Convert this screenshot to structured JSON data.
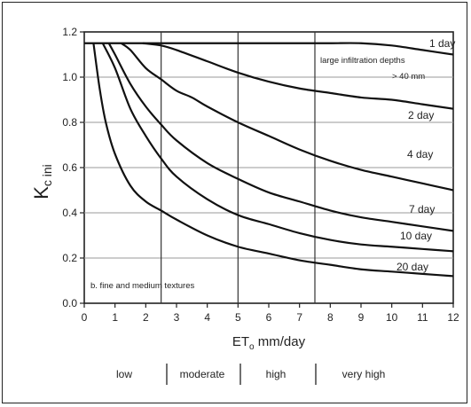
{
  "chart_data": {
    "type": "line",
    "title": "",
    "xlabel_main": "ET",
    "xlabel_sub": "o",
    "xlabel_suffix": " mm/day",
    "ylabel_main": "K",
    "ylabel_sub": "c ini",
    "xlim": [
      0,
      12
    ],
    "ylim": [
      0,
      1.2
    ],
    "x_ticks": [
      0,
      1,
      2,
      3,
      4,
      5,
      6,
      7,
      8,
      9,
      10,
      11,
      12
    ],
    "y_ticks": [
      0.0,
      0.2,
      0.4,
      0.6,
      0.8,
      1.0,
      1.2
    ],
    "y_tick_labels": [
      "0.0",
      "0.2",
      "0.4",
      "0.6",
      "0.8",
      "1.0",
      "1.2"
    ],
    "vertical_lines": [
      2.5,
      5,
      7.5
    ],
    "grid": "horizontal",
    "series": [
      {
        "name": "1 day",
        "x": [
          0,
          1,
          2,
          3,
          4,
          5,
          6,
          7,
          8,
          9,
          10,
          11,
          12
        ],
        "y": [
          1.15,
          1.15,
          1.15,
          1.15,
          1.15,
          1.15,
          1.15,
          1.15,
          1.15,
          1.15,
          1.14,
          1.12,
          1.1
        ]
      },
      {
        "name": "2 day",
        "x": [
          1.9,
          2.5,
          3,
          4,
          5,
          6,
          7,
          8,
          9,
          10,
          11,
          12
        ],
        "y": [
          1.15,
          1.14,
          1.12,
          1.07,
          1.02,
          0.98,
          0.95,
          0.93,
          0.91,
          0.9,
          0.88,
          0.86
        ]
      },
      {
        "name": "4 day",
        "x": [
          1.2,
          1.5,
          2,
          2.5,
          3,
          3.5,
          4,
          5,
          6,
          7,
          8,
          9,
          10,
          11,
          12
        ],
        "y": [
          1.15,
          1.12,
          1.04,
          0.99,
          0.94,
          0.91,
          0.87,
          0.8,
          0.74,
          0.68,
          0.63,
          0.59,
          0.56,
          0.53,
          0.5
        ]
      },
      {
        "name": "7 day",
        "x": [
          0.8,
          1,
          1.5,
          2,
          2.5,
          3,
          4,
          5,
          6,
          7,
          8,
          9,
          10,
          11,
          12
        ],
        "y": [
          1.15,
          1.1,
          0.97,
          0.87,
          0.79,
          0.72,
          0.62,
          0.55,
          0.49,
          0.45,
          0.41,
          0.38,
          0.36,
          0.34,
          0.32
        ]
      },
      {
        "name": "10 day",
        "x": [
          0.6,
          1,
          1.5,
          2,
          2.5,
          3,
          4,
          5,
          6,
          7,
          8,
          9,
          10,
          11,
          12
        ],
        "y": [
          1.15,
          1.04,
          0.86,
          0.74,
          0.64,
          0.56,
          0.46,
          0.39,
          0.35,
          0.31,
          0.28,
          0.26,
          0.25,
          0.24,
          0.23
        ]
      },
      {
        "name": "20 day",
        "x": [
          0.3,
          0.5,
          0.7,
          1,
          1.5,
          2,
          2.5,
          3,
          4,
          5,
          6,
          7,
          8,
          9,
          10,
          11,
          12
        ],
        "y": [
          1.15,
          0.95,
          0.8,
          0.66,
          0.52,
          0.45,
          0.41,
          0.37,
          0.3,
          0.25,
          0.22,
          0.19,
          0.17,
          0.15,
          0.14,
          0.13,
          0.12
        ]
      }
    ],
    "annotations": {
      "large_infiltration_line1": "large infiltration depths",
      "large_infiltration_line2": "> 40 mm",
      "texture_note": "b.  fine and medium textures"
    },
    "series_labels": [
      "1 day",
      "2 day",
      "4 day",
      "7 day",
      "10 day",
      "20 day"
    ],
    "et_classes": [
      "low",
      "moderate",
      "high",
      "very high"
    ]
  }
}
